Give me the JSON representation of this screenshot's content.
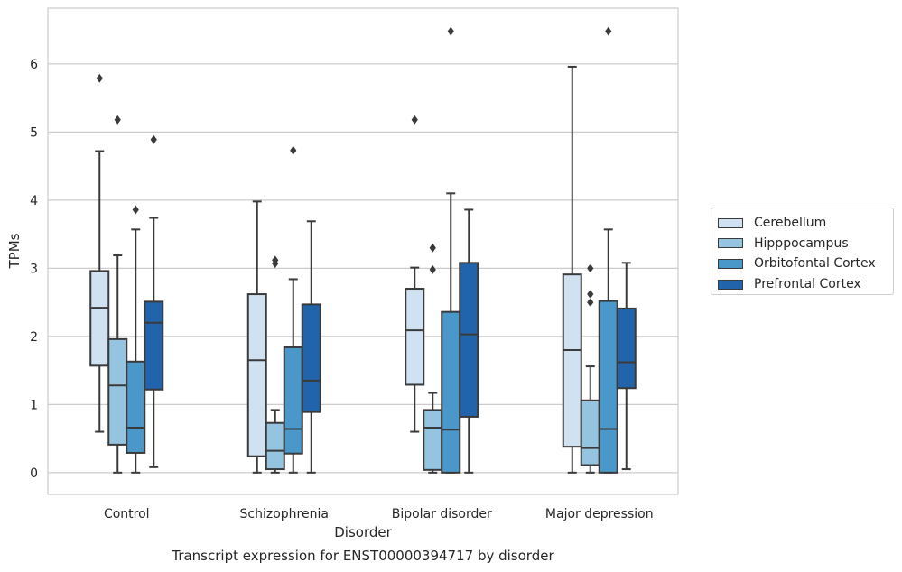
{
  "chart_data": {
    "type": "box",
    "title": "",
    "xlabel": "Disorder",
    "ylabel": "TPMs",
    "caption": "Transcript expression for ENST00000394717 by disorder",
    "ylim": [
      -0.32,
      6.82
    ],
    "yticks": [
      "0",
      "1",
      "2",
      "3",
      "4",
      "5",
      "6"
    ],
    "grid": true,
    "legend_position": "right",
    "categories": [
      "Control",
      "Schizophrenia",
      "Bipolar disorder",
      "Major depression"
    ],
    "series": [
      {
        "name": "Cerebellum",
        "color": "#d0e1f2",
        "boxes": [
          {
            "whislo": 0.6,
            "q1": 1.57,
            "med": 2.42,
            "q3": 2.96,
            "whishi": 4.72,
            "fliers": [
              5.79
            ]
          },
          {
            "whislo": 0.0,
            "q1": 0.24,
            "med": 1.65,
            "q3": 2.62,
            "whishi": 3.98,
            "fliers": []
          },
          {
            "whislo": 0.6,
            "q1": 1.29,
            "med": 2.09,
            "q3": 2.7,
            "whishi": 3.01,
            "fliers": [
              5.18
            ]
          },
          {
            "whislo": 0.0,
            "q1": 0.38,
            "med": 1.8,
            "q3": 2.91,
            "whishi": 5.96,
            "fliers": []
          }
        ]
      },
      {
        "name": "Hipppocampus",
        "color": "#94c4df",
        "boxes": [
          {
            "whislo": 0.0,
            "q1": 0.41,
            "med": 1.28,
            "q3": 1.96,
            "whishi": 3.19,
            "fliers": [
              5.18
            ]
          },
          {
            "whislo": 0.0,
            "q1": 0.05,
            "med": 0.32,
            "q3": 0.73,
            "whishi": 0.92,
            "fliers": [
              3.07,
              3.12
            ]
          },
          {
            "whislo": 0.0,
            "q1": 0.04,
            "med": 0.66,
            "q3": 0.92,
            "whishi": 1.17,
            "fliers": [
              2.98,
              3.3
            ]
          },
          {
            "whislo": 0.0,
            "q1": 0.11,
            "med": 0.36,
            "q3": 1.06,
            "whishi": 1.56,
            "fliers": [
              2.5,
              2.62,
              3.0
            ]
          }
        ]
      },
      {
        "name": "Orbitofontal Cortex",
        "color": "#4a98c9",
        "boxes": [
          {
            "whislo": 0.0,
            "q1": 0.29,
            "med": 0.66,
            "q3": 1.63,
            "whishi": 3.57,
            "fliers": [
              3.86
            ]
          },
          {
            "whislo": 0.0,
            "q1": 0.28,
            "med": 0.64,
            "q3": 1.84,
            "whishi": 2.84,
            "fliers": [
              4.73
            ]
          },
          {
            "whislo": 0.0,
            "q1": 0.0,
            "med": 0.63,
            "q3": 2.36,
            "whishi": 4.1,
            "fliers": [
              6.48
            ]
          },
          {
            "whislo": 0.0,
            "q1": 0.0,
            "med": 0.64,
            "q3": 2.52,
            "whishi": 3.57,
            "fliers": [
              6.48
            ]
          }
        ]
      },
      {
        "name": "Prefrontal Cortex",
        "color": "#2164ab",
        "boxes": [
          {
            "whislo": 0.08,
            "q1": 1.22,
            "med": 2.2,
            "q3": 2.51,
            "whishi": 3.74,
            "fliers": [
              4.89
            ]
          },
          {
            "whislo": 0.0,
            "q1": 0.89,
            "med": 1.35,
            "q3": 2.47,
            "whishi": 3.69,
            "fliers": []
          },
          {
            "whislo": 0.0,
            "q1": 0.82,
            "med": 2.03,
            "q3": 3.08,
            "whishi": 3.86,
            "fliers": []
          },
          {
            "whislo": 0.05,
            "q1": 1.24,
            "med": 1.62,
            "q3": 2.41,
            "whishi": 3.08,
            "fliers": []
          }
        ]
      }
    ]
  }
}
